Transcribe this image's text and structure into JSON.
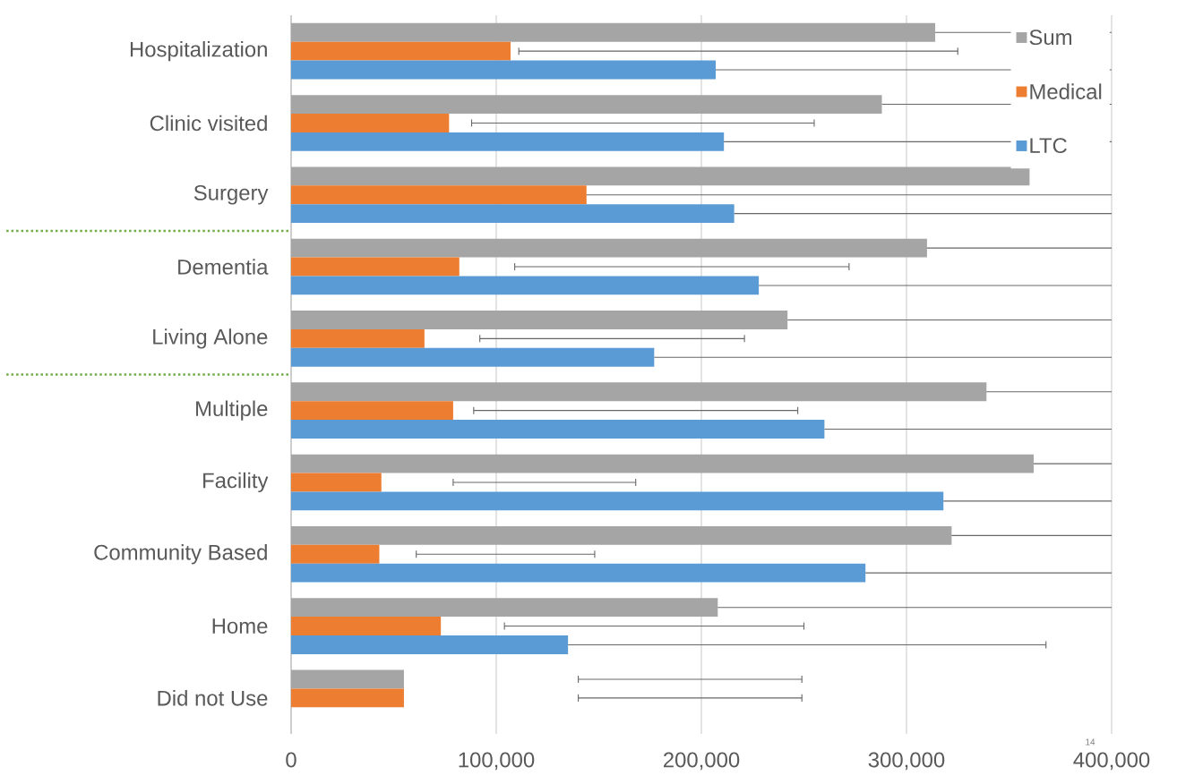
{
  "chart_data": {
    "type": "bar",
    "orientation": "horizontal",
    "categories": [
      "Hospitalization",
      "Clinic visited",
      "Surgery",
      "Dementia",
      "Living Alone",
      "Multiple",
      "Facility",
      "Community Based",
      "Home",
      "Did not Use"
    ],
    "series": [
      {
        "name": "Sum",
        "color": "#a5a5a5",
        "values": [
          314000,
          288000,
          360000,
          310000,
          242000,
          339000,
          362000,
          322000,
          208000,
          55000
        ],
        "errors": [
          [
            314000,
            400000
          ],
          [
            288000,
            400000
          ],
          null,
          [
            310000,
            400000
          ],
          [
            242000,
            400000
          ],
          [
            339000,
            400000
          ],
          [
            362000,
            400000
          ],
          [
            322000,
            400000
          ],
          [
            208000,
            400000
          ],
          [
            140000,
            249000
          ]
        ]
      },
      {
        "name": "Medical",
        "color": "#ed7d31",
        "values": [
          107000,
          77000,
          144000,
          82000,
          65000,
          79000,
          44000,
          43000,
          73000,
          55000
        ],
        "errors": [
          [
            111000,
            325000
          ],
          [
            88000,
            255000
          ],
          [
            144000,
            400000
          ],
          [
            109000,
            272000
          ],
          [
            92000,
            221000
          ],
          [
            89000,
            247000
          ],
          [
            79000,
            168000
          ],
          [
            61000,
            148000
          ],
          [
            104000,
            250000
          ],
          [
            140000,
            249000
          ]
        ]
      },
      {
        "name": "LTC",
        "color": "#5b9bd5",
        "values": [
          207000,
          211000,
          216000,
          228000,
          177000,
          260000,
          318000,
          280000,
          135000,
          null
        ],
        "errors": [
          [
            207000,
            400000
          ],
          [
            211000,
            400000
          ],
          [
            216000,
            400000
          ],
          [
            228000,
            400000
          ],
          [
            177000,
            400000
          ],
          [
            260000,
            400000
          ],
          [
            318000,
            400000
          ],
          [
            280000,
            400000
          ],
          [
            135000,
            368000
          ],
          null
        ]
      }
    ],
    "xlim": [
      0,
      400000
    ],
    "xticks": [
      0,
      {
        "value": 100000,
        "label": "100,000"
      },
      {
        "value": 200000,
        "label": "200,000"
      },
      {
        "value": 300000,
        "label": "300,000"
      },
      {
        "value": 400000,
        "label": "400,000"
      }
    ],
    "grid": "x",
    "legend": "top right",
    "annotations": [
      "14"
    ]
  }
}
